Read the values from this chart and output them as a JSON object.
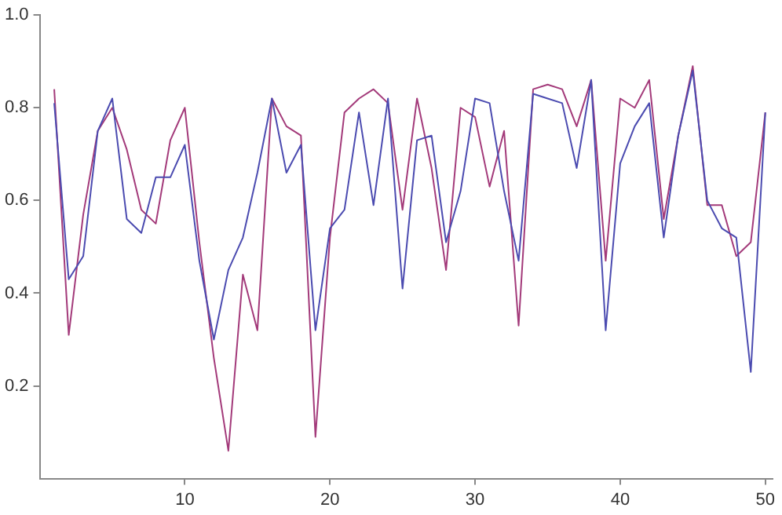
{
  "chart_data": {
    "type": "line",
    "x": [
      1,
      2,
      3,
      4,
      5,
      6,
      7,
      8,
      9,
      10,
      11,
      12,
      13,
      14,
      15,
      16,
      17,
      18,
      19,
      20,
      21,
      22,
      23,
      24,
      25,
      26,
      27,
      28,
      29,
      30,
      31,
      32,
      33,
      34,
      35,
      36,
      37,
      38,
      39,
      40,
      41,
      42,
      43,
      44,
      45,
      46,
      47,
      48,
      49,
      50
    ],
    "series": [
      {
        "color": "#4b4bb0",
        "values": [
          0.81,
          0.43,
          0.48,
          0.75,
          0.82,
          0.56,
          0.53,
          0.65,
          0.65,
          0.72,
          0.47,
          0.3,
          0.45,
          0.52,
          0.66,
          0.82,
          0.66,
          0.72,
          0.32,
          0.54,
          0.58,
          0.79,
          0.59,
          0.82,
          0.41,
          0.73,
          0.74,
          0.51,
          0.62,
          0.82,
          0.81,
          0.62,
          0.47,
          0.83,
          0.82,
          0.81,
          0.67,
          0.86,
          0.32,
          0.68,
          0.76,
          0.81,
          0.52,
          0.74,
          0.88,
          0.6,
          0.54,
          0.52,
          0.23,
          0.79
        ]
      },
      {
        "color": "#a33a7a",
        "values": [
          0.84,
          0.31,
          0.57,
          0.75,
          0.8,
          0.71,
          0.58,
          0.55,
          0.73,
          0.8,
          0.51,
          0.26,
          0.06,
          0.44,
          0.32,
          0.82,
          0.76,
          0.74,
          0.09,
          0.52,
          0.79,
          0.82,
          0.84,
          0.81,
          0.58,
          0.82,
          0.67,
          0.45,
          0.8,
          0.78,
          0.63,
          0.75,
          0.33,
          0.84,
          0.85,
          0.84,
          0.76,
          0.86,
          0.47,
          0.82,
          0.8,
          0.86,
          0.56,
          0.74,
          0.89,
          0.59,
          0.59,
          0.48,
          0.51,
          0.79
        ]
      }
    ],
    "xlim": [
      0,
      50.5
    ],
    "xticks": [
      10,
      20,
      30,
      40,
      50
    ],
    "ylim": [
      0,
      1
    ],
    "yticks": [
      0.2,
      0.4,
      0.6,
      {
        "value": 1,
        "label": "1.0"
      },
      0.8
    ],
    "grid": false,
    "legend": false,
    "marker": "none",
    "line_style": "solid"
  }
}
